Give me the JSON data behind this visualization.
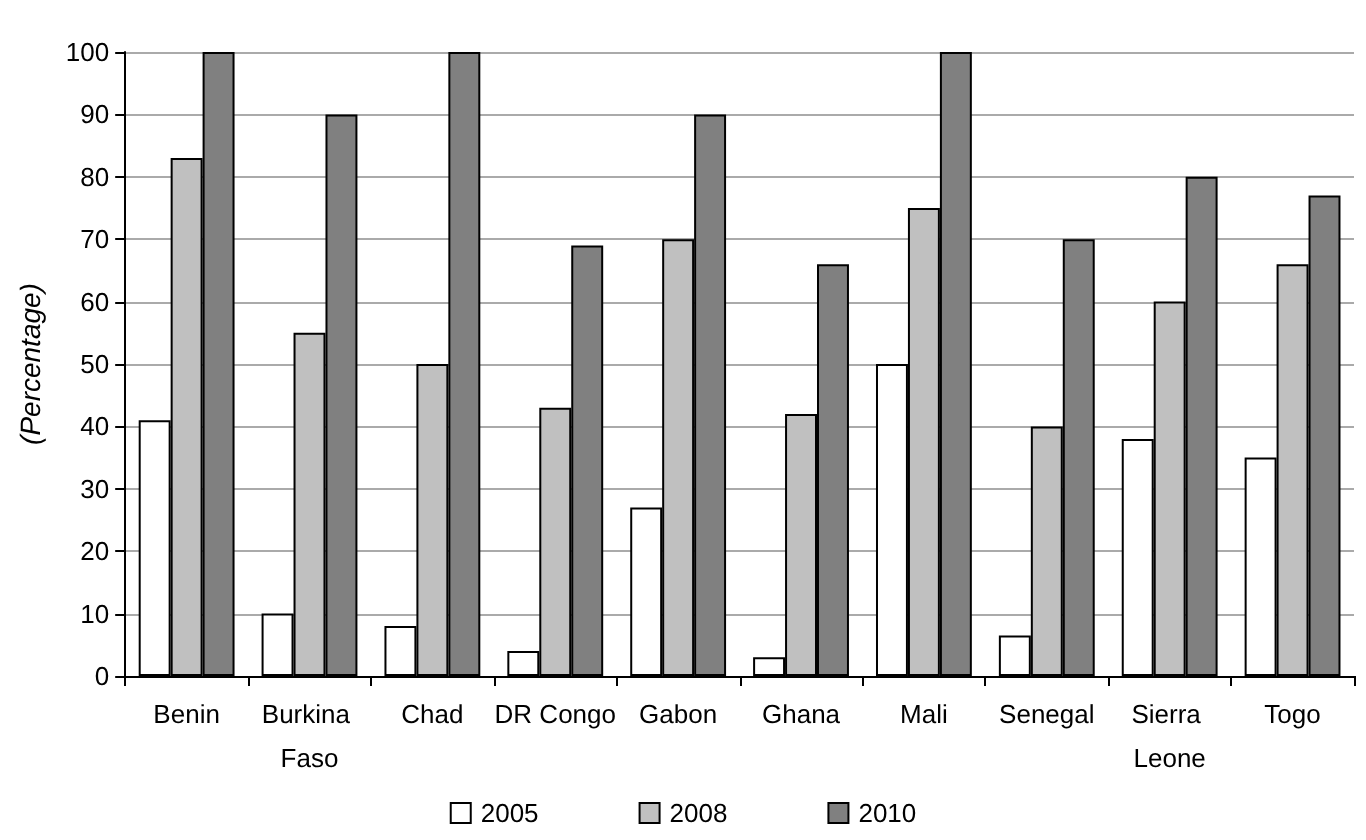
{
  "chart_data": {
    "type": "bar",
    "ylabel": "(Percentage)",
    "categories": [
      "Benin",
      "Burkina Faso",
      "Chad",
      "DR Congo",
      "Gabon",
      "Ghana",
      "Mali",
      "Senegal",
      "Sierra Leone",
      "Togo"
    ],
    "series": [
      {
        "name": "2005",
        "color": "#ffffff",
        "values": [
          41,
          10,
          8,
          4,
          27,
          3,
          50,
          6.5,
          38,
          35
        ]
      },
      {
        "name": "2008",
        "color": "#c0c0c0",
        "values": [
          83,
          55,
          50,
          43,
          70,
          42,
          75,
          40,
          60,
          66
        ]
      },
      {
        "name": "2010",
        "color": "#808080",
        "values": [
          100,
          90,
          100,
          69,
          90,
          66,
          100,
          70,
          80,
          77
        ]
      }
    ],
    "ylim": [
      0,
      100
    ],
    "yticks": [
      0,
      10,
      20,
      30,
      40,
      50,
      60,
      70,
      80,
      90,
      100
    ],
    "grid": "y",
    "legend": "bottom"
  }
}
